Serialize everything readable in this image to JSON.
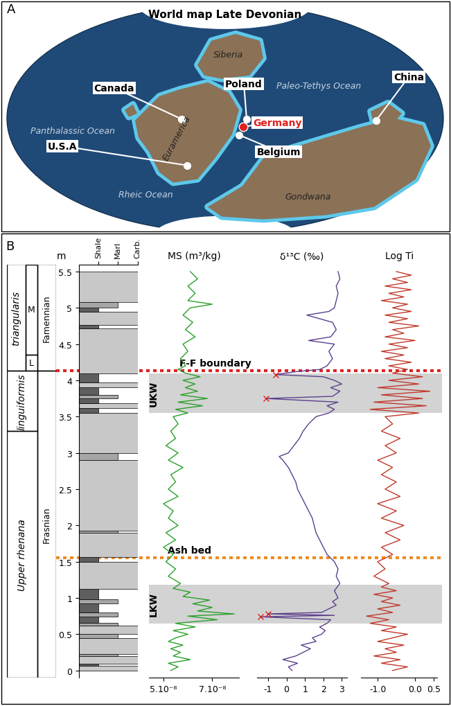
{
  "map": {
    "panel_label": "A",
    "title": "World map Late Devonian",
    "sites": [
      "Canada",
      "U.S.A",
      "Poland",
      "Germany",
      "Belgium",
      "China"
    ],
    "highlight": "Germany",
    "regions": [
      "Panthalassic Ocean",
      "Rheic Ocean",
      "Paleo-Tethys Ocean",
      "Siberia",
      "Euramerica",
      "Gondwana"
    ]
  },
  "chart_data": {
    "type": "line",
    "panel_label": "B",
    "ylabel": "m",
    "ylim": [
      -0.1,
      5.6
    ],
    "yticks": [
      0,
      0.5,
      1,
      1.5,
      2,
      2.5,
      3,
      3.5,
      4,
      4.5,
      5,
      5.5
    ],
    "zones": [
      {
        "name": "triangularis",
        "base": 4.13,
        "top": 5.6,
        "subzones": [
          {
            "name": "L",
            "base": 4.13,
            "top": 4.35
          },
          {
            "name": "M",
            "base": 4.35,
            "top": 5.6
          }
        ]
      },
      {
        "name": "linguiformis",
        "base": 3.3,
        "top": 4.13
      },
      {
        "name": "Upper rhenana",
        "base": -0.1,
        "top": 3.3
      }
    ],
    "stages": [
      {
        "name": "Famennian",
        "base": 4.13,
        "top": 5.6
      },
      {
        "name": "Frasnian",
        "base": -0.1,
        "top": 4.13
      }
    ],
    "lithology": {
      "categories": [
        "Shale",
        "Marl",
        "Carb."
      ],
      "beds": [
        [
          0.0,
          0.06,
          "Carb."
        ],
        [
          0.06,
          0.09,
          "Shale"
        ],
        [
          0.09,
          0.2,
          "Carb."
        ],
        [
          0.2,
          0.23,
          "Marl"
        ],
        [
          0.23,
          0.45,
          "Carb."
        ],
        [
          0.45,
          0.5,
          "Marl"
        ],
        [
          0.5,
          0.62,
          "Carb."
        ],
        [
          0.62,
          0.66,
          "Marl"
        ],
        [
          0.66,
          0.74,
          "Shale"
        ],
        [
          0.74,
          0.8,
          "Marl"
        ],
        [
          0.8,
          0.92,
          "Shale"
        ],
        [
          0.92,
          0.98,
          "Marl"
        ],
        [
          0.98,
          1.12,
          "Shale"
        ],
        [
          1.12,
          1.5,
          "Carb."
        ],
        [
          1.5,
          1.56,
          "Shale"
        ],
        [
          1.56,
          1.9,
          "Carb."
        ],
        [
          1.9,
          1.93,
          "Marl"
        ],
        [
          1.93,
          2.9,
          "Carb."
        ],
        [
          2.9,
          3.0,
          "Marl"
        ],
        [
          3.0,
          3.55,
          "Carb."
        ],
        [
          3.55,
          3.62,
          "Shale"
        ],
        [
          3.62,
          3.68,
          "Carb."
        ],
        [
          3.68,
          3.75,
          "Shale"
        ],
        [
          3.75,
          3.8,
          "Marl"
        ],
        [
          3.8,
          3.9,
          "Shale"
        ],
        [
          3.9,
          3.97,
          "Carb."
        ],
        [
          3.97,
          4.1,
          "Shale"
        ],
        [
          4.1,
          4.72,
          "Carb."
        ],
        [
          4.72,
          4.76,
          "Shale"
        ],
        [
          4.76,
          4.95,
          "Carb."
        ],
        [
          4.95,
          5.0,
          "Shale"
        ],
        [
          5.0,
          5.08,
          "Marl"
        ],
        [
          5.08,
          5.5,
          "Carb."
        ]
      ]
    },
    "intervals": [
      {
        "name": "LKW",
        "base": 0.65,
        "top": 1.18
      },
      {
        "name": "UKW",
        "base": 3.55,
        "top": 4.1
      }
    ],
    "events": [
      {
        "name": "Ash bed",
        "depth": 1.55,
        "color": "#f08c1e"
      },
      {
        "name": "F-F boundary",
        "depth": 4.13,
        "color": "#e02020"
      }
    ],
    "tracks": [
      {
        "title": "MS (m³/kg)",
        "xlim": [
          4.4e-08,
          8.1e-08
        ],
        "xticks": [
          {
            "value": 5e-08,
            "label": "5.10⁻⁸"
          },
          {
            "value": 7e-08,
            "label": "7.10⁻⁸"
          }
        ],
        "series": [
          {
            "color": "#2aa02a",
            "y": [
              0.0,
              0.05,
              0.1,
              0.15,
              0.2,
              0.25,
              0.3,
              0.35,
              0.4,
              0.45,
              0.5,
              0.55,
              0.6,
              0.65,
              0.7,
              0.75,
              0.78,
              0.82,
              0.87,
              0.92,
              0.97,
              1.02,
              1.08,
              1.13,
              1.2,
              1.3,
              1.4,
              1.5,
              1.6,
              1.7,
              1.8,
              1.9,
              2.0,
              2.1,
              2.2,
              2.3,
              2.4,
              2.5,
              2.6,
              2.7,
              2.8,
              2.9,
              3.0,
              3.1,
              3.2,
              3.3,
              3.4,
              3.5,
              3.55,
              3.6,
              3.65,
              3.7,
              3.75,
              3.8,
              3.85,
              3.9,
              3.95,
              4.0,
              4.05,
              4.1,
              4.15,
              4.2,
              4.3,
              4.4,
              4.5,
              4.6,
              4.7,
              4.8,
              4.9,
              5.0,
              5.05,
              5.1,
              5.2,
              5.3,
              5.4,
              5.5
            ],
            "values": [
              5.3e-08,
              5.6e-08,
              5.2e-08,
              6.1e-08,
              5.4e-08,
              5.7e-08,
              5.3e-08,
              5.8e-08,
              5.2e-08,
              5.5e-08,
              6e-08,
              5.4e-08,
              6.3e-08,
              5.5e-08,
              7.2e-08,
              6e-08,
              7.9e-08,
              6.4e-08,
              7e-08,
              6.2e-08,
              6.9e-08,
              5.8e-08,
              6.1e-08,
              5.4e-08,
              5.7e-08,
              5.2e-08,
              5.5e-08,
              5.1e-08,
              5.4e-08,
              5e-08,
              5.5e-08,
              5.1e-08,
              5.6e-08,
              5.2e-08,
              5.4e-08,
              5e-08,
              5.6e-08,
              5.2e-08,
              5.5e-08,
              5.3e-08,
              5.8e-08,
              5.2e-08,
              5.6e-08,
              5.1e-08,
              5.5e-08,
              5.3e-08,
              5.6e-08,
              5.4e-08,
              6e-08,
              5.5e-08,
              6.6e-08,
              5.6e-08,
              6.8e-08,
              5.7e-08,
              6.4e-08,
              5.9e-08,
              6.3e-08,
              5.8e-08,
              6.5e-08,
              5.9e-08,
              5.6e-08,
              5.9e-08,
              5.7e-08,
              6e-08,
              5.8e-08,
              6.3e-08,
              5.9e-08,
              6.2e-08,
              5.8e-08,
              6.1e-08,
              7e-08,
              6e-08,
              6.3e-08,
              6e-08,
              6.4e-08,
              6.1e-08
            ]
          }
        ]
      },
      {
        "title": "δ¹³C (‰)",
        "xlim": [
          -1.6,
          3.3
        ],
        "xticks": [
          -1,
          0,
          1,
          2,
          3
        ],
        "series": [
          {
            "color": "#5b3f8c",
            "y": [
              0.0,
              0.05,
              0.1,
              0.15,
              0.2,
              0.25,
              0.3,
              0.35,
              0.4,
              0.45,
              0.5,
              0.55,
              0.6,
              0.65,
              0.7,
              0.74,
              0.76,
              0.78,
              0.8,
              0.85,
              0.9,
              0.95,
              1.0,
              1.1,
              1.2,
              1.3,
              1.4,
              1.5,
              1.6,
              1.7,
              1.8,
              1.9,
              2.0,
              2.1,
              2.2,
              2.3,
              2.4,
              2.5,
              2.6,
              2.7,
              2.8,
              2.9,
              2.95,
              3.0,
              3.1,
              3.2,
              3.3,
              3.4,
              3.5,
              3.55,
              3.6,
              3.65,
              3.7,
              3.75,
              3.78,
              3.85,
              3.9,
              3.95,
              4.0,
              4.05,
              4.08,
              4.12,
              4.15,
              4.2,
              4.3,
              4.4,
              4.5,
              4.55,
              4.6,
              4.7,
              4.8,
              4.9,
              4.95,
              5.0,
              5.1,
              5.2,
              5.3,
              5.4,
              5.5
            ],
            "values": [
              0.3,
              0.1,
              0.6,
              -0.2,
              0.5,
              0.9,
              1.3,
              0.8,
              1.6,
              1.4,
              1.9,
              2.1,
              1.8,
              2.2,
              2.4,
              -1.4,
              2.6,
              -1.0,
              1.9,
              2.3,
              2.7,
              2.5,
              2.8,
              2.6,
              2.9,
              2.7,
              2.8,
              2.6,
              2.2,
              2.0,
              1.8,
              1.6,
              1.5,
              1.4,
              1.2,
              1.0,
              0.8,
              0.6,
              0.5,
              0.3,
              0.1,
              -0.2,
              -0.4,
              0.1,
              0.4,
              0.7,
              0.9,
              1.2,
              1.6,
              2.3,
              2.6,
              2.2,
              2.8,
              -1.1,
              2.5,
              2.9,
              2.4,
              3.0,
              2.6,
              2.0,
              -0.6,
              0.5,
              1.8,
              2.2,
              2.5,
              2.3,
              2.6,
              1.2,
              2.4,
              2.7,
              2.5,
              1.1,
              2.3,
              2.6,
              2.7,
              2.8,
              2.7,
              2.9,
              2.8
            ]
          },
          {
            "color": "#e02020",
            "marker": "x",
            "line_style": "none",
            "y": [
              0.74,
              0.78,
              3.75,
              4.08
            ],
            "values": [
              -1.4,
              -1.0,
              -1.1,
              -0.6
            ]
          }
        ]
      },
      {
        "title": "Log Ti",
        "xlim": [
          -1.45,
          0.6
        ],
        "xticks": [
          {
            "value": -1.0,
            "label": "-1.0"
          },
          {
            "value": 0.0,
            "label": "0.0"
          },
          {
            "value": 0.5,
            "label": "0.5"
          }
        ],
        "series": [
          {
            "color": "#c0392b",
            "y": [
              0.0,
              0.05,
              0.1,
              0.15,
              0.2,
              0.25,
              0.3,
              0.35,
              0.4,
              0.45,
              0.5,
              0.55,
              0.6,
              0.65,
              0.7,
              0.75,
              0.8,
              0.85,
              0.9,
              0.95,
              1.0,
              1.05,
              1.1,
              1.15,
              1.2,
              1.3,
              1.4,
              1.5,
              1.6,
              1.7,
              1.8,
              1.9,
              2.0,
              2.1,
              2.2,
              2.3,
              2.4,
              2.5,
              2.6,
              2.7,
              2.8,
              2.9,
              3.0,
              3.1,
              3.2,
              3.3,
              3.4,
              3.5,
              3.55,
              3.6,
              3.65,
              3.7,
              3.75,
              3.8,
              3.85,
              3.9,
              3.95,
              4.0,
              4.05,
              4.1,
              4.15,
              4.2,
              4.25,
              4.3,
              4.35,
              4.4,
              4.45,
              4.5,
              4.55,
              4.6,
              4.65,
              4.7,
              4.75,
              4.8,
              4.85,
              4.9,
              4.95,
              5.0,
              5.05,
              5.1,
              5.15,
              5.2,
              5.25,
              5.3,
              5.35,
              5.4,
              5.45,
              5.5
            ],
            "values": [
              -0.6,
              -0.2,
              -0.9,
              -0.4,
              -1.1,
              -0.5,
              -0.8,
              -0.3,
              -1.0,
              -0.6,
              -0.2,
              -0.9,
              -0.5,
              -1.2,
              -0.7,
              -1.3,
              -0.6,
              -1.0,
              -0.4,
              -0.9,
              -0.6,
              -1.1,
              -0.5,
              -0.9,
              -0.7,
              -1.1,
              -0.8,
              -1.0,
              -0.6,
              -0.9,
              -0.4,
              -0.8,
              -0.3,
              -0.9,
              -0.5,
              -1.0,
              -0.4,
              -0.8,
              -0.5,
              -0.9,
              -0.6,
              -1.0,
              -0.5,
              -0.8,
              -0.4,
              -0.9,
              -0.6,
              -0.8,
              0.1,
              -1.2,
              0.3,
              -1.1,
              0.2,
              -0.9,
              0.4,
              -1.0,
              0.1,
              -0.7,
              0.2,
              -0.6,
              -0.2,
              -0.7,
              -0.1,
              -0.8,
              -0.3,
              -0.9,
              -0.2,
              -0.7,
              0.0,
              -0.8,
              -0.3,
              -0.6,
              0.1,
              -0.7,
              -0.2,
              -0.8,
              -0.1,
              -0.6,
              -0.2,
              -0.9,
              -0.3,
              -0.7,
              -0.1,
              -0.8,
              -0.2,
              -0.6,
              -0.1,
              -0.5
            ]
          }
        ]
      }
    ]
  }
}
